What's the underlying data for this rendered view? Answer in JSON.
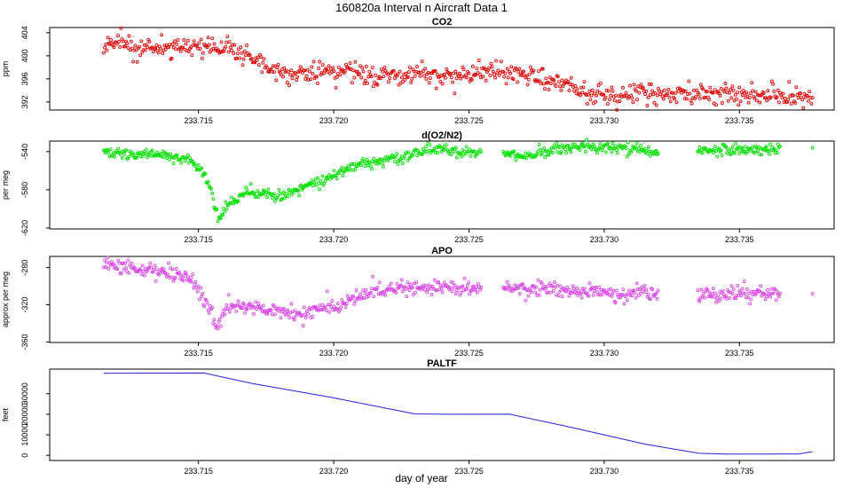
{
  "figure": {
    "title": "160820a   Interval n Aircraft Data 1",
    "xlabel": "day of year",
    "xticks": [
      "233.715",
      "233.720",
      "233.725",
      "233.730",
      "233.735"
    ]
  },
  "chart_data": [
    {
      "type": "scatter",
      "title": "CO2",
      "ylabel": "ppm",
      "ylim": [
        390.6,
        404.9
      ],
      "yticks": [
        404,
        400,
        396,
        392
      ],
      "xlim": [
        233.7095,
        233.7385
      ],
      "color": "#e00000",
      "trend": [
        [
          233.7115,
          401.8
        ],
        [
          233.714,
          401.6
        ],
        [
          233.716,
          401.3
        ],
        [
          233.717,
          399.5
        ],
        [
          233.718,
          396.8
        ],
        [
          233.7195,
          397.3
        ],
        [
          233.722,
          397.0
        ],
        [
          233.7245,
          396.3
        ],
        [
          233.7262,
          397.2
        ],
        [
          233.728,
          395.8
        ],
        [
          233.7295,
          393.3
        ],
        [
          233.733,
          393.6
        ],
        [
          233.7355,
          393.1
        ],
        [
          233.7377,
          392.8
        ]
      ],
      "noise": 0.85,
      "gaps": []
    },
    {
      "type": "scatter",
      "title": "d(O2/N2)",
      "ylabel": "per meg",
      "ylim": [
        -621,
        -529
      ],
      "yticks": [
        -540,
        -580,
        -620
      ],
      "xlim": [
        233.7095,
        233.7385
      ],
      "color": "#00e000",
      "trend": [
        [
          233.7115,
          -541
        ],
        [
          233.7135,
          -543
        ],
        [
          233.7145,
          -547
        ],
        [
          233.715,
          -555
        ],
        [
          233.7155,
          -580
        ],
        [
          233.7157,
          -612
        ],
        [
          233.716,
          -598
        ],
        [
          233.7168,
          -582
        ],
        [
          233.718,
          -587
        ],
        [
          233.7195,
          -571
        ],
        [
          233.721,
          -553
        ],
        [
          233.7225,
          -546
        ],
        [
          233.7235,
          -538
        ],
        [
          233.7255,
          -541
        ],
        [
          233.7265,
          -542
        ],
        [
          233.727,
          -545
        ],
        [
          233.7285,
          -536
        ],
        [
          233.73,
          -534
        ],
        [
          233.732,
          -540
        ],
        [
          233.7345,
          -537
        ],
        [
          233.7365,
          -539
        ]
      ],
      "noise": 2.8,
      "gaps": [
        [
          233.72545,
          233.72625
        ],
        [
          233.732,
          233.73345
        ],
        [
          233.7366,
          233.7377
        ]
      ],
      "extras": [
        [
          233.7377,
          -536
        ]
      ]
    },
    {
      "type": "scatter",
      "title": "APO",
      "ylabel": "approx per meg",
      "ylim": [
        -360.5,
        -268
      ],
      "yticks": [
        -280,
        -320,
        -360
      ],
      "xlim": [
        233.7095,
        233.7385
      ],
      "color": "#dd44ee",
      "trend": [
        [
          233.7115,
          -275
        ],
        [
          233.713,
          -282
        ],
        [
          233.7145,
          -290
        ],
        [
          233.715,
          -305
        ],
        [
          233.7155,
          -328
        ],
        [
          233.7157,
          -345
        ],
        [
          233.716,
          -322
        ],
        [
          233.717,
          -322
        ],
        [
          233.7185,
          -330
        ],
        [
          233.72,
          -322
        ],
        [
          233.7215,
          -305
        ],
        [
          233.723,
          -302
        ],
        [
          233.7255,
          -301
        ],
        [
          233.727,
          -302
        ],
        [
          233.729,
          -305
        ],
        [
          233.731,
          -308
        ],
        [
          233.7345,
          -309
        ],
        [
          233.7365,
          -306
        ]
      ],
      "noise": 4.0,
      "gaps": [
        [
          233.72545,
          233.72625
        ],
        [
          233.732,
          233.73345
        ],
        [
          233.7366,
          233.7377
        ]
      ],
      "extras": [
        [
          233.7377,
          -308
        ]
      ]
    },
    {
      "type": "line",
      "title": "PALTF",
      "ylabel": "feet",
      "ylim": [
        -2500,
        42000
      ],
      "yticks": [
        30000,
        20000,
        10000,
        0
      ],
      "xlim": [
        233.7095,
        233.7385
      ],
      "color": "#2020e0",
      "points": [
        [
          233.7115,
          40000
        ],
        [
          233.7152,
          40100
        ],
        [
          233.717,
          35000
        ],
        [
          233.72,
          28000
        ],
        [
          233.723,
          20200
        ],
        [
          233.7245,
          20000
        ],
        [
          233.7265,
          20100
        ],
        [
          233.729,
          13000
        ],
        [
          233.7315,
          5500
        ],
        [
          233.7335,
          1000
        ],
        [
          233.7345,
          600
        ],
        [
          233.736,
          650
        ],
        [
          233.7372,
          700
        ],
        [
          233.7377,
          1800
        ]
      ]
    }
  ]
}
